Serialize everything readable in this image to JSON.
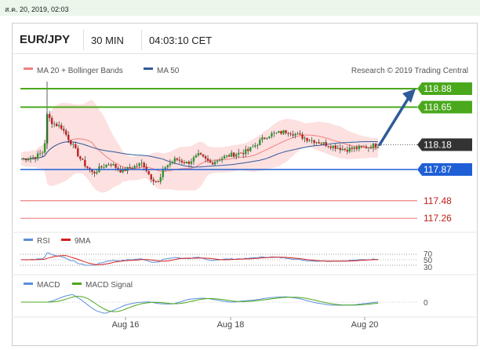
{
  "timestamp": "ส.ค. 20, 2019, 02:03",
  "header": {
    "symbol": "EUR/JPY",
    "timeframe": "30 MIN",
    "time": "04:03:10 CET"
  },
  "legend": {
    "ma20": "MA 20 + Bollinger Bands",
    "ma50": "MA 50",
    "copyright": "Research © 2019 Trading Central"
  },
  "colors": {
    "green": "#4aa81c",
    "blue": "#1f5fd6",
    "red_line": "#f08080",
    "arrow": "#2e5b9a",
    "current_bg": "#333333"
  },
  "chart_data": [
    {
      "type": "line",
      "title": "EUR/JPY 30 MIN",
      "x_ticks": [
        "Aug 16",
        "Aug 18",
        "Aug 20"
      ],
      "price_range": [
        117.05,
        119.1
      ],
      "current_price": 118.18,
      "levels": [
        {
          "label": "118.88",
          "value": 118.88,
          "kind": "resistance"
        },
        {
          "label": "118.65",
          "value": 118.65,
          "kind": "resistance"
        },
        {
          "label": "118.18",
          "value": 118.18,
          "kind": "current"
        },
        {
          "label": "117.87",
          "value": 117.87,
          "kind": "pivot"
        },
        {
          "label": "117.48",
          "value": 117.48,
          "kind": "support"
        },
        {
          "label": "117.26",
          "value": 117.26,
          "kind": "support"
        }
      ],
      "series": [
        {
          "name": "MA 20 + Bollinger Bands"
        },
        {
          "name": "MA 50"
        }
      ],
      "forecast": {
        "from": 118.18,
        "to": 118.88,
        "direction": "up"
      }
    },
    {
      "type": "line",
      "series": [
        {
          "name": "RSI"
        },
        {
          "name": "9MA"
        }
      ],
      "y_ticks": [
        "70",
        "50",
        "30"
      ]
    },
    {
      "type": "line",
      "series": [
        {
          "name": "MACD"
        },
        {
          "name": "MACD Signal"
        }
      ],
      "y_ticks": [
        "0"
      ]
    }
  ]
}
